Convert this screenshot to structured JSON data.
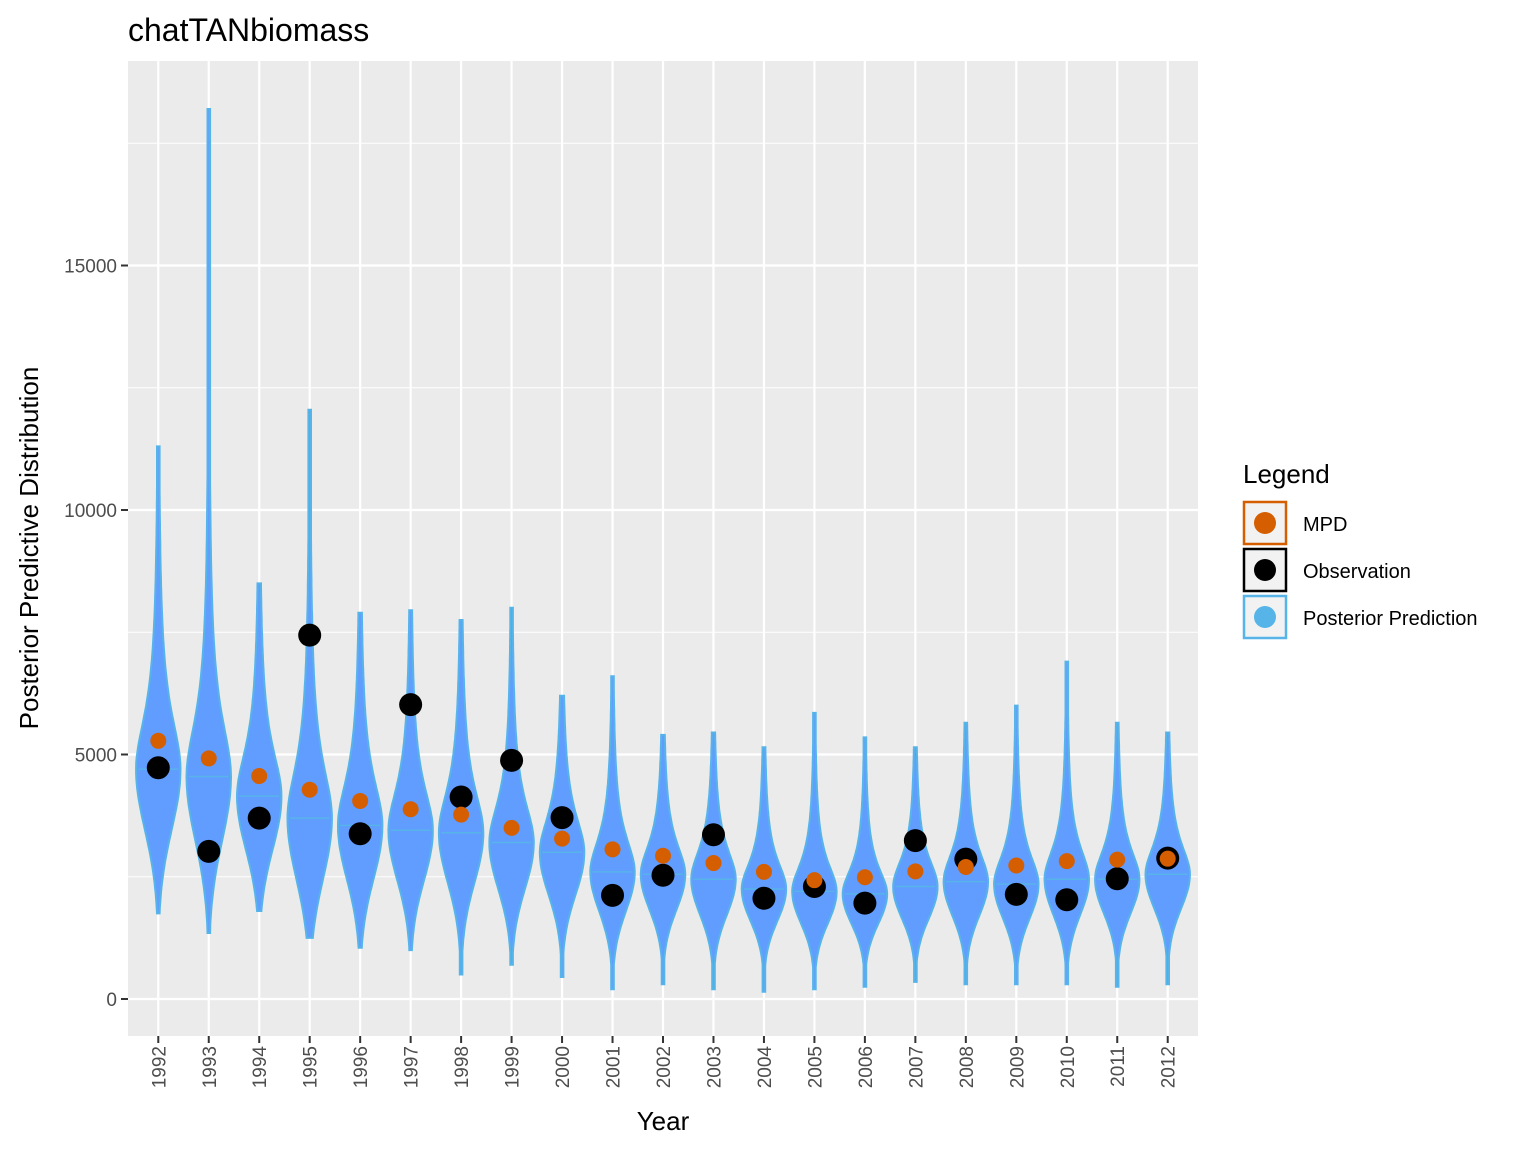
{
  "chart_data": {
    "type": "violin",
    "title": "chatTANbiomass",
    "xlabel": "Year",
    "ylabel": "Posterior Predictive Distribution",
    "ylim": [
      -800,
      19400
    ],
    "yticks": [
      0,
      5000,
      10000,
      15000
    ],
    "grid": true,
    "legend_position": "right",
    "legend": {
      "title": "Legend",
      "entries": [
        {
          "label": "MPD",
          "color": "#D55E00"
        },
        {
          "label": "Observation",
          "color": "#000000"
        },
        {
          "label": "Posterior Prediction",
          "color": "#56B4E9"
        }
      ]
    },
    "colors": {
      "panel_background": "#EBEBEB",
      "grid": "#FFFFFF",
      "violin_fill": "#619CFF",
      "violin_line": "#56B4E9",
      "mpd": "#D55E00",
      "observation": "#000000"
    },
    "categories": [
      "1992",
      "1993",
      "1994",
      "1995",
      "1996",
      "1997",
      "1998",
      "1999",
      "2000",
      "2001",
      "2002",
      "2003",
      "2004",
      "2005",
      "2006",
      "2007",
      "2008",
      "2009",
      "2010",
      "2011",
      "2012"
    ],
    "series": [
      {
        "name": "Posterior Prediction",
        "min": [
          1750,
          1350,
          1800,
          1250,
          1050,
          1000,
          500,
          700,
          450,
          200,
          300,
          200,
          150,
          200,
          250,
          350,
          300,
          300,
          300,
          250,
          300
        ],
        "max": [
          11300,
          18200,
          8500,
          12050,
          7900,
          7950,
          7750,
          8000,
          6200,
          6600,
          5400,
          5450,
          5150,
          5850,
          5350,
          5150,
          5650,
          6000,
          6900,
          5650,
          5450
        ],
        "median": [
          4700,
          4550,
          4150,
          3700,
          3550,
          3450,
          3400,
          3200,
          3000,
          2600,
          2550,
          2450,
          2250,
          2200,
          2150,
          2300,
          2400,
          2350,
          2450,
          2450,
          2550
        ],
        "spread": [
          850,
          900,
          750,
          850,
          750,
          700,
          700,
          650,
          600,
          550,
          500,
          500,
          450,
          450,
          420,
          450,
          480,
          480,
          500,
          480,
          480
        ]
      },
      {
        "name": "MPD",
        "values": [
          5280,
          4920,
          4560,
          4280,
          4050,
          3880,
          3770,
          3500,
          3280,
          3060,
          2930,
          2780,
          2600,
          2430,
          2490,
          2610,
          2700,
          2730,
          2820,
          2850,
          2870
        ]
      },
      {
        "name": "Observation",
        "values": [
          4730,
          3020,
          3700,
          7440,
          3380,
          6020,
          4130,
          4880,
          3710,
          2120,
          2530,
          3360,
          2060,
          2300,
          1960,
          3240,
          2860,
          2140,
          2030,
          2460,
          2880
        ]
      }
    ]
  }
}
